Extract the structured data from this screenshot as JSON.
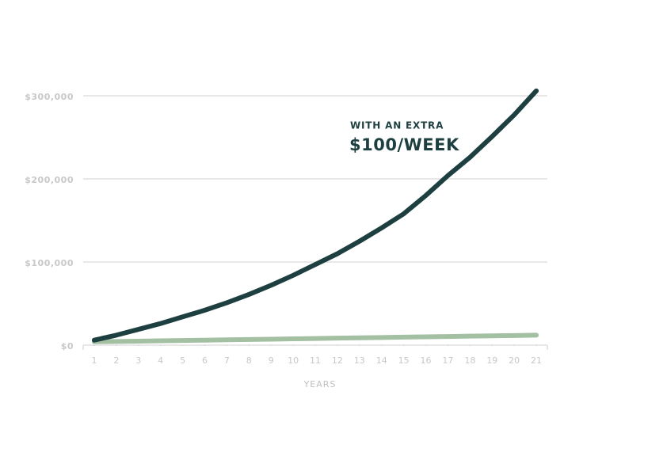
{
  "chart_data": {
    "type": "line",
    "x_label": "YEARS",
    "annotation": [
      "WITH AN EXTRA",
      "$100/WEEK"
    ],
    "x": [
      1,
      2,
      3,
      4,
      5,
      6,
      7,
      8,
      9,
      10,
      11,
      12,
      13,
      14,
      15,
      16,
      17,
      18,
      19,
      20,
      21
    ],
    "xlim": [
      0.5,
      21.5
    ],
    "xticks": [
      1,
      2,
      3,
      4,
      5,
      6,
      7,
      8,
      9,
      10,
      11,
      12,
      13,
      14,
      15,
      16,
      17,
      18,
      19,
      20,
      21
    ],
    "ylim": [
      0,
      300000
    ],
    "yticks": [
      {
        "value": 0,
        "label": "$0"
      },
      {
        "value": 100000,
        "label": "$100,000"
      },
      {
        "value": 200000,
        "label": "$200,000"
      },
      {
        "value": 300000,
        "label": "$300,000"
      }
    ],
    "grid": true,
    "series": [
      {
        "color": "#a3c0a3",
        "values": [
          4000,
          4400,
          4800,
          5200,
          5600,
          6000,
          6400,
          6800,
          7200,
          7600,
          8000,
          8400,
          8800,
          9200,
          9600,
          10000,
          10400,
          10800,
          11200,
          11600,
          12000
        ]
      },
      {
        "color": "#1e3f40",
        "values": [
          6000,
          12000,
          19000,
          26000,
          34000,
          42000,
          51000,
          61000,
          72000,
          84000,
          97000,
          110000,
          125000,
          141000,
          158000,
          180000,
          204000,
          226000,
          251000,
          277000,
          306000
        ]
      }
    ]
  }
}
